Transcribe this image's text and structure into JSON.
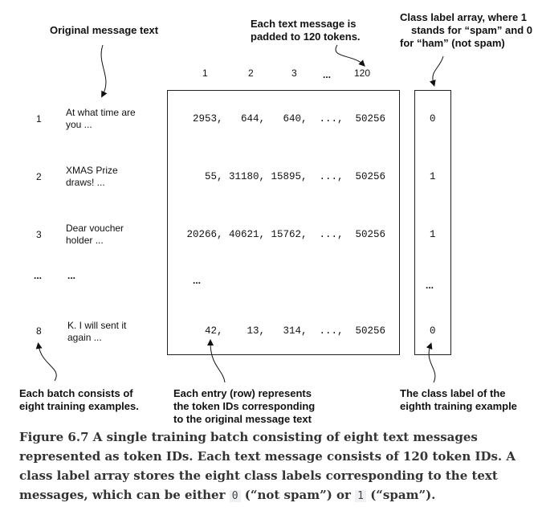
{
  "annotations": {
    "original_message_text": "Original message text",
    "padded_line1": "Each text message is",
    "padded_line2": "padded to 120 tokens.",
    "class_label_line1": "Class label array, where 1",
    "class_label_line2": "stands for “spam” and 0",
    "class_label_line3": "for “ham” (not spam)",
    "batch_line1": "Each batch consists of",
    "batch_line2": "eight training examples.",
    "entry_line1": "Each entry (row) represents",
    "entry_line2": "the token IDs corresponding",
    "entry_line3": "to the original message text",
    "eighth_line1": "The class label of the",
    "eighth_line2": "eighth training example"
  },
  "column_headers": [
    "1",
    "2",
    "3",
    "...",
    "120"
  ],
  "rows": [
    {
      "index": "1",
      "text_line1": "At what time are",
      "text_line2": "you ...",
      "ids": "2953,   644,   640,  ...,  50256",
      "label": "0"
    },
    {
      "index": "2",
      "text_line1": "XMAS Prize",
      "text_line2": "draws! ...",
      "ids": "55, 31180, 15895,  ...,  50256",
      "label": "1"
    },
    {
      "index": "3",
      "text_line1": "Dear voucher",
      "text_line2": "holder ...",
      "ids": "20266, 40621, 15762,  ...,  50256",
      "label": "1"
    },
    {
      "index": "8",
      "text_line1": "K. I will sent it",
      "text_line2": "again ...",
      "ids": "42,    13,   314,  ...,  50256",
      "label": "0"
    }
  ],
  "ellipsis": {
    "index": "...",
    "text": "...",
    "ids": "...",
    "label": "..."
  },
  "caption": {
    "part1": "Figure 6.7 A single training batch consisting of eight text messages represented as token IDs. Each text message consists of 120 token IDs. A class label array stores the eight class labels corresponding to the text messages, which can be either ",
    "code0": "0",
    "part2": " (“not spam”) or ",
    "code1": "1",
    "part3": " (“spam”)."
  }
}
